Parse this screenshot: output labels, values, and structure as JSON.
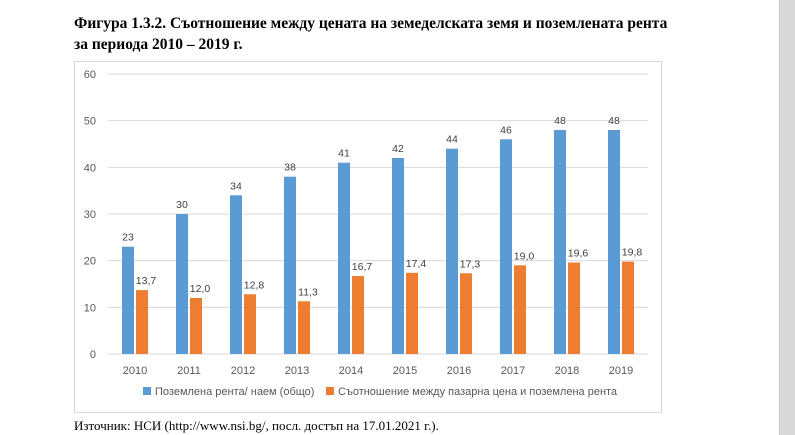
{
  "title_line1": "Фигура 1.3.2. Съотношение между цената на земеделската земя и поземлената рента",
  "title_line2": "за периода 2010 – 2019 г.",
  "source": "Източник: НСИ (http://www.nsi.bg/, посл. достъп на 17.01.2021 г.).",
  "chart_data": {
    "type": "bar",
    "categories": [
      "2010",
      "2011",
      "2012",
      "2013",
      "2014",
      "2015",
      "2016",
      "2017",
      "2018",
      "2019"
    ],
    "ylim": [
      0,
      60
    ],
    "yticks": [
      0,
      10,
      20,
      30,
      40,
      50,
      60
    ],
    "grid": true,
    "legend": "bottom",
    "series": [
      {
        "name": "Поземлена рента/ наем (общо)",
        "color": "#5b9bd5",
        "values": [
          23,
          30,
          34,
          38,
          41,
          42,
          44,
          46,
          48,
          48
        ],
        "labels": [
          "23",
          "30",
          "34",
          "38",
          "41",
          "42",
          "44",
          "46",
          "48",
          "48"
        ]
      },
      {
        "name": "Съотношение между пазарна цена и поземлена рента",
        "color": "#ed7d31",
        "values": [
          13.7,
          12.0,
          12.8,
          11.3,
          16.7,
          17.4,
          17.3,
          19.0,
          19.6,
          19.8
        ],
        "labels": [
          "13,7",
          "12,0",
          "12,8",
          "11,3",
          "16,7",
          "17,4",
          "17,3",
          "19,0",
          "19,6",
          "19,8"
        ]
      }
    ]
  }
}
